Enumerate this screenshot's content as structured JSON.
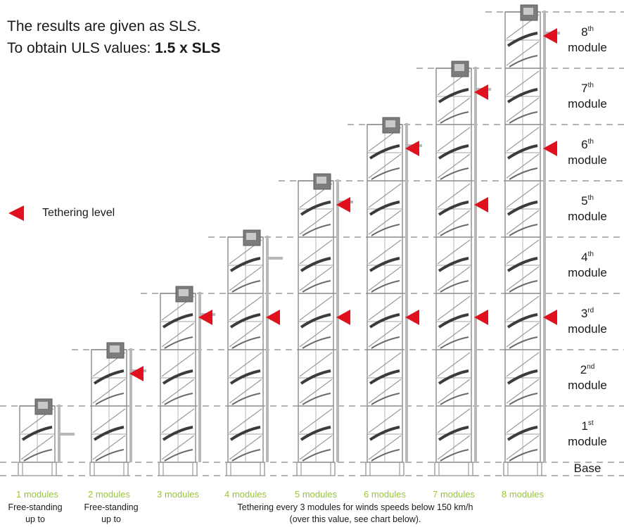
{
  "header": {
    "line1": "The results are given as SLS.",
    "line2_prefix": "To obtain ULS values: ",
    "line2_bold": "1.5 x SLS"
  },
  "legend": {
    "label": "Tethering level"
  },
  "module_levels": [
    {
      "num": "1",
      "suffix": "st",
      "word": "module"
    },
    {
      "num": "2",
      "suffix": "nd",
      "word": "module"
    },
    {
      "num": "3",
      "suffix": "rd",
      "word": "module"
    },
    {
      "num": "4",
      "suffix": "th",
      "word": "module"
    },
    {
      "num": "5",
      "suffix": "th",
      "word": "module"
    },
    {
      "num": "6",
      "suffix": "th",
      "word": "module"
    },
    {
      "num": "7",
      "suffix": "th",
      "word": "module"
    },
    {
      "num": "8",
      "suffix": "th",
      "word": "module"
    }
  ],
  "base_label": "Base",
  "columns": [
    {
      "label": "1 modules",
      "modules": 1,
      "tethers": []
    },
    {
      "label": "2 modules",
      "modules": 2,
      "tethers": [
        2
      ]
    },
    {
      "label": "3 modules",
      "modules": 3,
      "tethers": [
        3
      ]
    },
    {
      "label": "4 modules",
      "modules": 4,
      "tethers": [
        3
      ]
    },
    {
      "label": "5 modules",
      "modules": 5,
      "tethers": [
        3,
        5
      ]
    },
    {
      "label": "6 modules",
      "modules": 6,
      "tethers": [
        3,
        6
      ]
    },
    {
      "label": "7 modules",
      "modules": 7,
      "tethers": [
        3,
        5,
        7
      ]
    },
    {
      "label": "8 modules",
      "modules": 8,
      "tethers": [
        3,
        6,
        8
      ]
    }
  ],
  "notes": {
    "freestanding_line1": "Free-standing",
    "freestanding_line2": "up to",
    "tether_line1": "Tethering every 3 modules for winds speeds below 150 km/h",
    "tether_line2": "(over this value, see chart below)."
  },
  "colors": {
    "tether_marker": "#e0101e",
    "column_label": "#9bc43b",
    "scaffold": "#8a8a8a",
    "dashed_line": "#666666"
  }
}
